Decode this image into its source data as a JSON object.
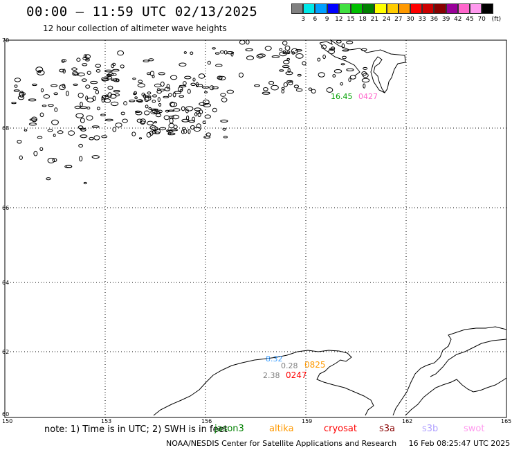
{
  "title": "00:00 – 11:59 UTC 02/13/2025",
  "subtitle": "12 hour collection of altimeter wave heights",
  "legend": {
    "unit": "(ft)",
    "colors": [
      "#808080",
      "#00e8e8",
      "#00a0ff",
      "#0000ff",
      "#40e040",
      "#00c000",
      "#008000",
      "#ffff00",
      "#ffcc00",
      "#ff9900",
      "#ff0000",
      "#cc0000",
      "#880000",
      "#990099",
      "#ff66cc",
      "#ff99ee",
      "#000000"
    ],
    "labels": [
      "3",
      "6",
      "9",
      "12",
      "15",
      "18",
      "21",
      "24",
      "27",
      "30",
      "33",
      "36",
      "39",
      "42",
      "45",
      "70"
    ]
  },
  "axes": {
    "lat_labels": [
      "70",
      "68",
      "66",
      "64",
      "62",
      "60"
    ],
    "lon_labels": [
      "150",
      "153",
      "156",
      "159",
      "162",
      "165"
    ]
  },
  "points": [
    {
      "text": "16.45",
      "color": "#00a000"
    },
    {
      "text": "0427",
      "color": "#ff66cc"
    },
    {
      "text": "8.32",
      "color": "#40a0ff"
    },
    {
      "text": "0.28",
      "color": "#808080"
    },
    {
      "text": "0825",
      "color": "#ff9900"
    },
    {
      "text": "2.38",
      "color": "#808080"
    },
    {
      "text": "0247",
      "color": "#ff0000"
    }
  ],
  "note": "note: 1) Time is in UTC; 2) SWH is in feet",
  "satellites": [
    {
      "name": "jason3",
      "color": "#008000"
    },
    {
      "name": "altika",
      "color": "#ff9900"
    },
    {
      "name": "cryosat",
      "color": "#ff0000"
    },
    {
      "name": "s3a",
      "color": "#880000"
    },
    {
      "name": "s3b",
      "color": "#b0a0ff"
    },
    {
      "name": "swot",
      "color": "#ff99ee"
    }
  ],
  "footer": "NOAA/NESDIS Center for Satellite Applications and Research     16 Feb 08:25:47 UTC 2025"
}
